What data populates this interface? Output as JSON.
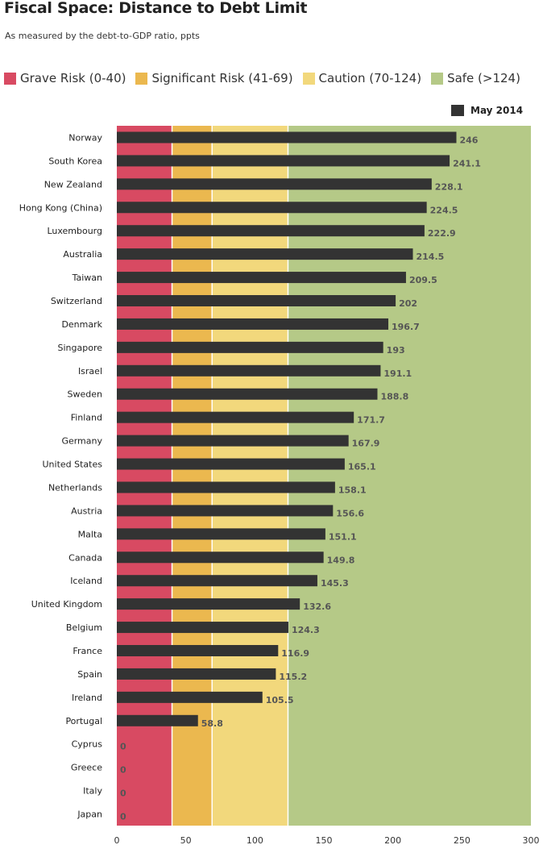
{
  "title": "Fiscal Space: Distance to Debt Limit",
  "subtitle": "As measured by the debt-to-GDP ratio, ppts",
  "zones": [
    {
      "label": "Grave Risk (0-40)",
      "from": 0,
      "to": 40,
      "color": "#d84a62"
    },
    {
      "label": "Significant Risk (41-69)",
      "from": 40,
      "to": 69,
      "color": "#ebb84f"
    },
    {
      "label": "Caution (70-124)",
      "from": 69,
      "to": 124,
      "color": "#f2d87c"
    },
    {
      "label": "Safe (>124)",
      "from": 124,
      "to": 300,
      "color": "#b5c987"
    }
  ],
  "chart_data": {
    "type": "bar",
    "orientation": "horizontal",
    "title": "Fiscal Space: Distance to Debt Limit",
    "subtitle": "As measured by the debt-to-GDP ratio, ppts",
    "series_name": "May 2014",
    "bar_color": "#333333",
    "xlim": [
      0,
      300
    ],
    "xticks": [
      0,
      50,
      100,
      150,
      200,
      250,
      300
    ],
    "categories": [
      "Norway",
      "South Korea",
      "New Zealand",
      "Hong Kong (China)",
      "Luxembourg",
      "Australia",
      "Taiwan",
      "Switzerland",
      "Denmark",
      "Singapore",
      "Israel",
      "Sweden",
      "Finland",
      "Germany",
      "United States",
      "Netherlands",
      "Austria",
      "Malta",
      "Canada",
      "Iceland",
      "United Kingdom",
      "Belgium",
      "France",
      "Spain",
      "Ireland",
      "Portugal",
      "Cyprus",
      "Greece",
      "Italy",
      "Japan"
    ],
    "values": [
      246,
      241.1,
      228.1,
      224.5,
      222.9,
      214.5,
      209.5,
      202,
      196.7,
      193,
      191.1,
      188.8,
      171.7,
      167.9,
      165.1,
      158.1,
      156.6,
      151.1,
      149.8,
      145.3,
      132.6,
      124.3,
      116.9,
      115.2,
      105.5,
      58.8,
      0,
      0,
      0,
      0
    ],
    "value_labels": [
      "246",
      "241.1",
      "228.1",
      "224.5",
      "222.9",
      "214.5",
      "209.5",
      "202",
      "196.7",
      "193",
      "191.1",
      "188.8",
      "171.7",
      "167.9",
      "165.1",
      "158.1",
      "156.6",
      "151.1",
      "149.8",
      "145.3",
      "132.6",
      "124.3",
      "116.9",
      "115.2",
      "105.5",
      "58.8",
      "0",
      "0",
      "0",
      "0"
    ],
    "legend": "top-right"
  }
}
